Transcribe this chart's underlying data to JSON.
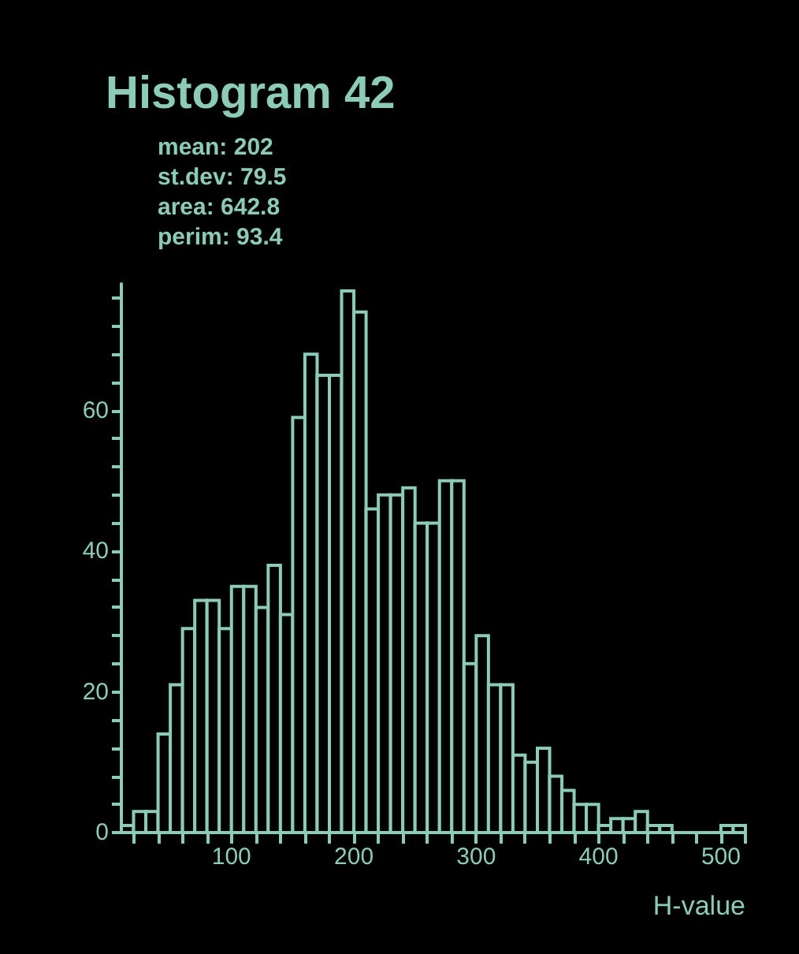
{
  "chart_data": {
    "type": "histogram",
    "title": "Histogram 42",
    "annotations": [
      "mean: 202",
      "st.dev: 79.5",
      "area: 642.8",
      "perim: 93.4"
    ],
    "xlabel": "H-value",
    "color": "#8ccbb8",
    "bins": [
      10,
      20,
      30,
      40,
      50,
      60,
      70,
      80,
      90,
      100,
      110,
      120,
      130,
      140,
      150,
      160,
      170,
      180,
      190,
      200,
      210,
      220,
      230,
      240,
      250,
      260,
      270,
      280,
      290,
      300,
      310,
      320,
      330,
      340,
      350,
      360,
      370,
      380,
      390,
      400,
      410,
      420,
      430,
      440,
      450,
      460,
      470,
      480,
      490,
      500,
      510,
      520
    ],
    "values": [
      1,
      3,
      3,
      14,
      21,
      29,
      33,
      33,
      29,
      35,
      35,
      32,
      38,
      31,
      59,
      68,
      65,
      65,
      77,
      74,
      46,
      48,
      48,
      49,
      44,
      44,
      50,
      50,
      24,
      28,
      21,
      21,
      11,
      10,
      12,
      8,
      6,
      4,
      4,
      1,
      2,
      2,
      3,
      1,
      1,
      0,
      0,
      0,
      0,
      1,
      1
    ],
    "xlim": [
      10,
      520
    ],
    "xticks": [
      {
        "value": 20,
        "label": null
      },
      {
        "value": 40,
        "label": null
      },
      {
        "value": 60,
        "label": null
      },
      {
        "value": 80,
        "label": null
      },
      100,
      {
        "value": 120,
        "label": null
      },
      {
        "value": 140,
        "label": null
      },
      {
        "value": 160,
        "label": null
      },
      {
        "value": 180,
        "label": null
      },
      200,
      {
        "value": 220,
        "label": null
      },
      {
        "value": 240,
        "label": null
      },
      {
        "value": 260,
        "label": null
      },
      {
        "value": 280,
        "label": null
      },
      300,
      {
        "value": 320,
        "label": null
      },
      {
        "value": 340,
        "label": null
      },
      {
        "value": 360,
        "label": null
      },
      {
        "value": 380,
        "label": null
      },
      400,
      {
        "value": 420,
        "label": null
      },
      {
        "value": 440,
        "label": null
      },
      {
        "value": 460,
        "label": null
      },
      {
        "value": 480,
        "label": null
      },
      500,
      {
        "value": 520,
        "label": null
      }
    ],
    "ylim": [
      0,
      78
    ],
    "yticks": [
      0,
      {
        "value": 4,
        "label": null
      },
      {
        "value": 8,
        "label": null
      },
      {
        "value": 12,
        "label": null
      },
      {
        "value": 16,
        "label": null
      },
      20,
      {
        "value": 24,
        "label": null
      },
      {
        "value": 28,
        "label": null
      },
      {
        "value": 32,
        "label": null
      },
      {
        "value": 36,
        "label": null
      },
      40,
      {
        "value": 44,
        "label": null
      },
      {
        "value": 48,
        "label": null
      },
      {
        "value": 52,
        "label": null
      },
      {
        "value": 56,
        "label": null
      },
      60,
      {
        "value": 64,
        "label": null
      },
      {
        "value": 68,
        "label": null
      },
      {
        "value": 72,
        "label": null
      },
      {
        "value": 76,
        "label": null
      }
    ],
    "grid": false
  }
}
